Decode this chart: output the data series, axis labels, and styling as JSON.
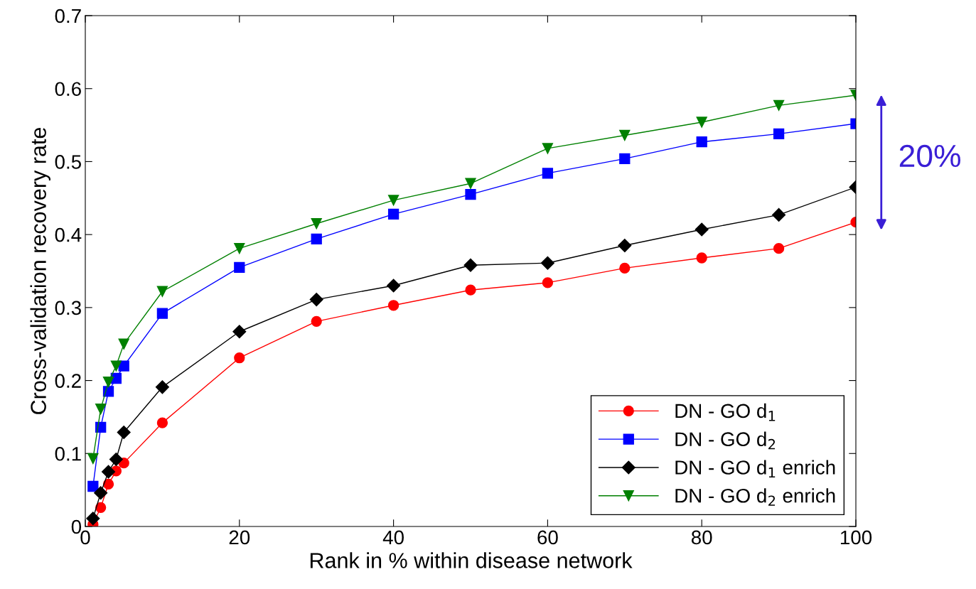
{
  "chart_data": {
    "type": "line",
    "xlabel": "Rank in % within disease network",
    "ylabel": "Cross-validation recovery rate",
    "x": [
      1,
      2,
      3,
      4,
      5,
      10,
      20,
      30,
      40,
      50,
      60,
      70,
      80,
      90,
      100
    ],
    "series": [
      {
        "name": "DN - GO d$_{1}$",
        "color": "#ff0000",
        "marker": "circle",
        "values": [
          0.003,
          0.026,
          0.058,
          0.076,
          0.087,
          0.142,
          0.231,
          0.281,
          0.303,
          0.324,
          0.334,
          0.354,
          0.368,
          0.381,
          0.417
        ]
      },
      {
        "name": "DN - GO d$_{2}$",
        "color": "#0000ff",
        "marker": "square",
        "values": [
          0.055,
          0.136,
          0.185,
          0.203,
          0.22,
          0.292,
          0.355,
          0.394,
          0.428,
          0.455,
          0.484,
          0.504,
          0.527,
          0.538,
          0.552
        ]
      },
      {
        "name": "DN - GO d$_{1}$ enrich",
        "color": "#000000",
        "marker": "diamond",
        "values": [
          0.011,
          0.046,
          0.075,
          0.092,
          0.129,
          0.191,
          0.267,
          0.311,
          0.33,
          0.358,
          0.361,
          0.385,
          0.407,
          0.427,
          0.465
        ]
      },
      {
        "name": "DN - GO d$_{2}$ enrich",
        "color": "#008000",
        "marker": "triangle_down",
        "values": [
          0.093,
          0.161,
          0.198,
          0.22,
          0.25,
          0.322,
          0.381,
          0.415,
          0.447,
          0.47,
          0.518,
          0.536,
          0.554,
          0.577,
          0.591
        ]
      }
    ],
    "xlim": [
      0,
      100
    ],
    "xticks": [
      0,
      20,
      40,
      60,
      80,
      100
    ],
    "ylim": [
      0,
      0.7
    ],
    "yticks": [
      0,
      0.1,
      0.2,
      0.3,
      0.4,
      0.5,
      0.6,
      0.7
    ],
    "grid": false,
    "legend": "bottom right",
    "line_style": "solid",
    "annotations": [
      "20%"
    ]
  }
}
